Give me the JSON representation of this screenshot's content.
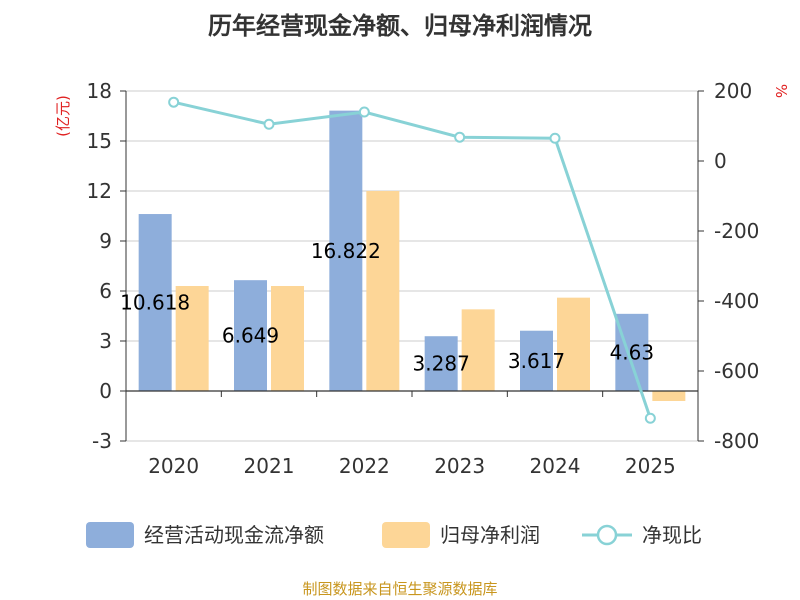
{
  "chart_data": {
    "type": "bar",
    "title": "历年经营现金净额、归母净利润情况",
    "categories": [
      "2020",
      "2021",
      "2022",
      "2023",
      "2024",
      "2025"
    ],
    "series": [
      {
        "name": "经营活动现金流净额",
        "type": "bar",
        "axis": "left",
        "color": "#8eaedb",
        "values": [
          10.618,
          6.649,
          16.822,
          3.287,
          3.617,
          4.63
        ],
        "labels": [
          "10.618",
          "6.649",
          "16.822",
          "3.287",
          "3.617",
          "4.63"
        ]
      },
      {
        "name": "归母净利润",
        "type": "bar",
        "axis": "left",
        "color": "#fdd697",
        "values": [
          6.3,
          6.3,
          12.0,
          4.9,
          5.6,
          -0.6
        ]
      },
      {
        "name": "净现比",
        "type": "line",
        "axis": "right",
        "color": "#88d2d6",
        "values": [
          168,
          105,
          140,
          68,
          65,
          -735
        ]
      }
    ],
    "left_axis": {
      "unit": "(亿元)",
      "ylim": [
        -3,
        18
      ],
      "ticks": [
        -3,
        0,
        3,
        6,
        9,
        12,
        15,
        18
      ]
    },
    "right_axis": {
      "unit": "%",
      "ylim": [
        -800,
        200
      ],
      "ticks": [
        -800,
        -600,
        -400,
        -200,
        0,
        200
      ]
    },
    "legend_position": "bottom",
    "grid": true
  },
  "source": "制图数据来自恒生聚源数据库"
}
